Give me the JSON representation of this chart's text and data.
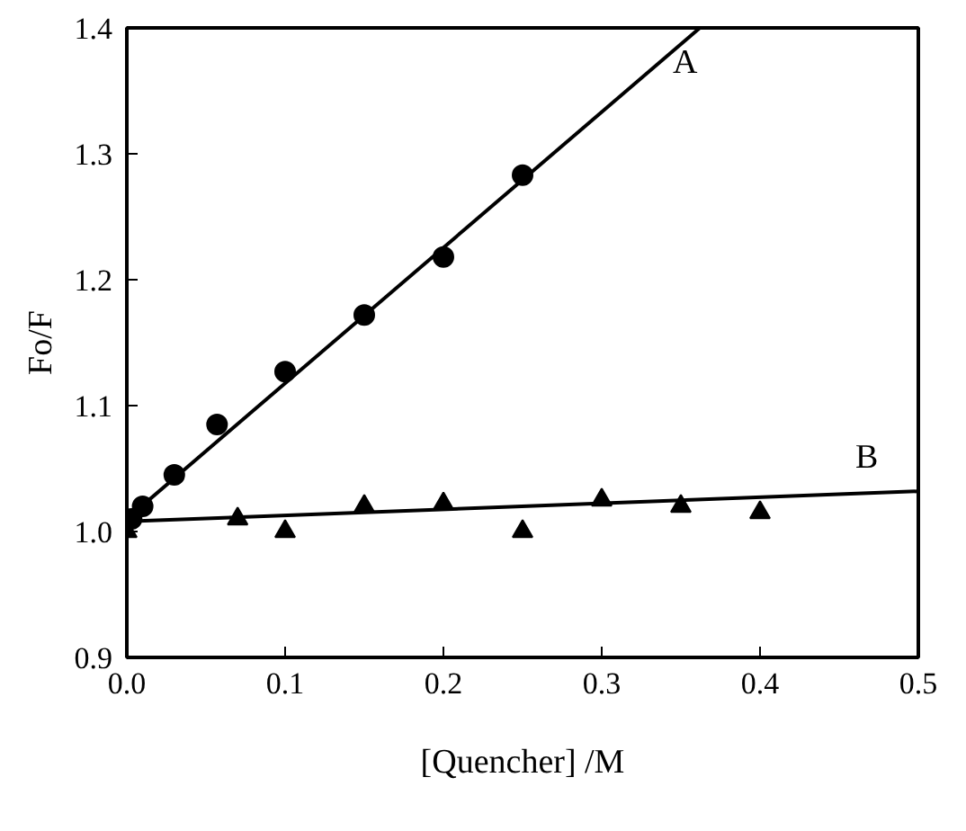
{
  "chart_data": {
    "type": "scatter",
    "xlabel": "[Quencher] /M",
    "ylabel": "Fo/F",
    "xlim": [
      0,
      0.5
    ],
    "ylim": [
      0.9,
      1.4
    ],
    "xticks": [
      "0.0",
      0.1,
      0.2,
      0.3,
      0.4,
      0.5
    ],
    "yticks": [
      0.9,
      "1.0",
      1.1,
      1.2,
      1.3,
      1.4
    ],
    "grid": false,
    "series": [
      {
        "marker": "circle",
        "color": "#000000",
        "x": [
          0.003,
          0.01,
          0.03,
          0.057,
          0.1,
          0.15,
          0.2,
          0.25
        ],
        "values": [
          1.01,
          1.02,
          1.045,
          1.085,
          1.127,
          1.172,
          1.218,
          1.283
        ]
      },
      {
        "marker": "triangle",
        "color": "#000000",
        "x": [
          0.0,
          0.07,
          0.1,
          0.15,
          0.2,
          0.25,
          0.3,
          0.35,
          0.4
        ],
        "values": [
          1.0,
          1.01,
          1.0,
          1.02,
          1.022,
          1.0,
          1.025,
          1.02,
          1.015
        ]
      },
      {
        "type": "line",
        "name": "A",
        "line_style": "solid",
        "color": "#000000",
        "x": [
          0,
          0.362
        ],
        "values": [
          1.01,
          1.4
        ]
      },
      {
        "type": "line",
        "name": "B",
        "line_style": "solid",
        "color": "#000000",
        "x": [
          0,
          0.5
        ],
        "values": [
          1.008,
          1.032
        ]
      }
    ]
  }
}
